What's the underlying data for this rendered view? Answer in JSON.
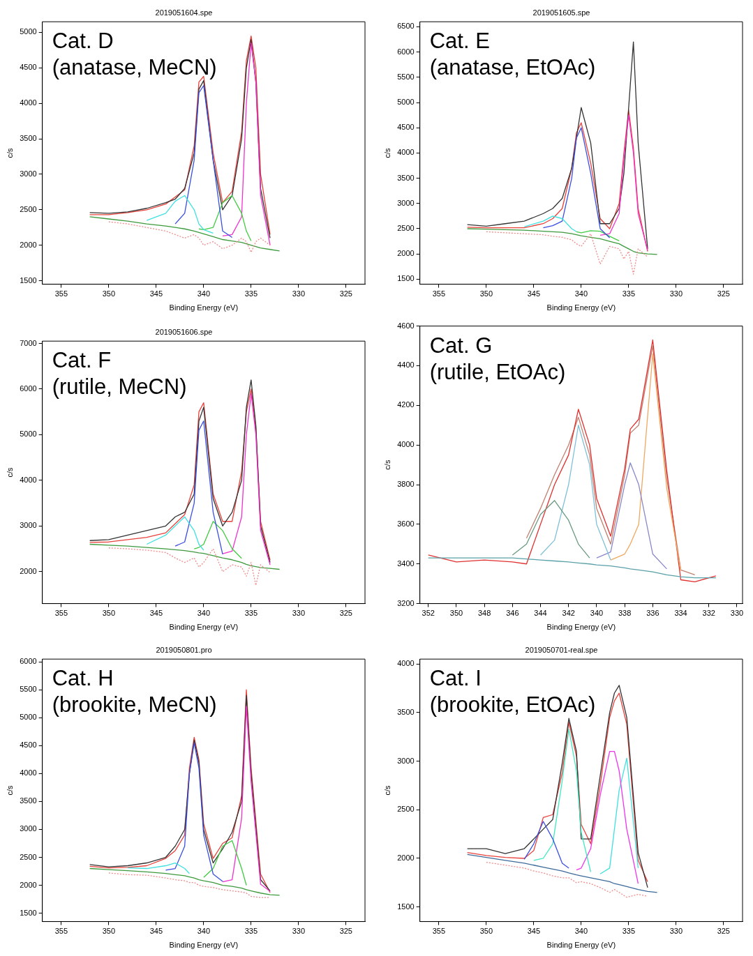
{
  "chart_data": [
    {
      "type": "line",
      "title": "2019051604.spe",
      "xlabel": "Binding Energy (eV)",
      "ylabel": "c/s",
      "annotations": [
        "Cat. D\n(anatase, MeCN)"
      ],
      "xlim": [
        357,
        323
      ],
      "xticks": [
        355,
        350,
        345,
        340,
        335,
        330,
        325
      ],
      "ylim": [
        1450,
        5150
      ],
      "yticks": [
        1500,
        2000,
        2500,
        3000,
        3500,
        4000,
        4500,
        5000
      ],
      "grid": false,
      "legend": false,
      "marker": "none",
      "x": [
        352,
        350,
        348,
        346,
        344,
        343,
        342,
        341,
        340.5,
        340,
        339,
        338,
        337,
        336,
        335.5,
        335,
        334.5,
        334,
        333,
        332
      ],
      "series": [
        {
          "color": "#f08a8a",
          "line_style": "dotted",
          "values": [
            null,
            2330,
            2300,
            2250,
            2200,
            2150,
            2100,
            2150,
            2100,
            2000,
            2050,
            1950,
            2000,
            2100,
            2050,
            1900,
            2050,
            2100,
            2000,
            null
          ]
        },
        {
          "color": "#3c9a3c",
          "values": [
            2400,
            2370,
            2340,
            2300,
            2270,
            2250,
            2230,
            2200,
            2180,
            2160,
            2120,
            2080,
            2060,
            2040,
            2020,
            2000,
            1980,
            1960,
            1940,
            1920
          ]
        },
        {
          "color": "#40e0e0",
          "values": [
            null,
            null,
            null,
            2350,
            2450,
            2620,
            2700,
            2500,
            2300,
            2220,
            2170,
            null,
            null,
            null,
            null,
            null,
            null,
            null,
            null,
            null
          ]
        },
        {
          "color": "#3a4fe0",
          "values": [
            null,
            null,
            null,
            null,
            null,
            2300,
            2450,
            3200,
            4150,
            4250,
            3200,
            2200,
            2110,
            null,
            null,
            null,
            null,
            null,
            null,
            null
          ]
        },
        {
          "color": "#40cc40",
          "values": [
            null,
            null,
            null,
            null,
            null,
            null,
            null,
            null,
            2230,
            2220,
            2250,
            2600,
            2700,
            2450,
            2200,
            2060,
            null,
            null,
            null,
            null
          ]
        },
        {
          "color": "#ee33cc",
          "values": [
            null,
            null,
            null,
            null,
            null,
            null,
            null,
            null,
            null,
            null,
            null,
            2130,
            2150,
            2400,
            4000,
            4850,
            4300,
            2700,
            2000,
            null
          ]
        },
        {
          "color": "#333333",
          "values": [
            2460,
            2450,
            2470,
            2520,
            2600,
            2650,
            2800,
            3300,
            4200,
            4320,
            3200,
            2500,
            2700,
            3500,
            4500,
            4900,
            4300,
            2800,
            2100,
            null
          ]
        },
        {
          "color": "#e8403a",
          "values": [
            2430,
            2430,
            2460,
            2500,
            2580,
            2680,
            2780,
            3400,
            4300,
            4380,
            3300,
            2600,
            2760,
            3600,
            4600,
            4950,
            4500,
            3000,
            2150,
            null
          ]
        }
      ]
    },
    {
      "type": "line",
      "title": "2019051605.spe",
      "xlabel": "Binding Energy (eV)",
      "ylabel": "c/s",
      "annotations": [
        "Cat. E\n(anatase, EtOAc)"
      ],
      "xlim": [
        357,
        323
      ],
      "xticks": [
        355,
        350,
        345,
        340,
        335,
        330,
        325
      ],
      "ylim": [
        1400,
        6600
      ],
      "yticks": [
        1500,
        2000,
        2500,
        3000,
        3500,
        4000,
        4500,
        5000,
        5500,
        6000,
        6500
      ],
      "grid": false,
      "legend": false,
      "marker": "none",
      "x": [
        352,
        350,
        348,
        346,
        344,
        343,
        342,
        341,
        340.5,
        340,
        339,
        338,
        337,
        336,
        335.5,
        335,
        334.5,
        334,
        333,
        332
      ],
      "series": [
        {
          "color": "#f08a8a",
          "line_style": "dotted",
          "values": [
            null,
            2440,
            2420,
            2400,
            2380,
            2350,
            2330,
            2280,
            2200,
            2150,
            2400,
            1800,
            2150,
            2100,
            1900,
            2050,
            1600,
            2100,
            1940,
            null
          ]
        },
        {
          "color": "#3c9a3c",
          "values": [
            2500,
            2490,
            2480,
            2470,
            2450,
            2440,
            2430,
            2400,
            2380,
            2360,
            2330,
            2300,
            2250,
            2200,
            2150,
            2100,
            2050,
            2020,
            2000,
            1990
          ]
        },
        {
          "color": "#40e0e0",
          "values": [
            null,
            null,
            null,
            2540,
            2650,
            2750,
            2700,
            2500,
            2440,
            null,
            null,
            null,
            null,
            null,
            null,
            null,
            null,
            null,
            null,
            null
          ]
        },
        {
          "color": "#3a4fe0",
          "values": [
            null,
            null,
            null,
            null,
            2520,
            2560,
            2650,
            3500,
            4300,
            4500,
            3600,
            2500,
            2320,
            null,
            null,
            null,
            null,
            null,
            null,
            null
          ]
        },
        {
          "color": "#40cc40",
          "values": [
            null,
            null,
            null,
            null,
            null,
            null,
            null,
            null,
            2440,
            2420,
            2460,
            2450,
            2350,
            2260,
            null,
            null,
            null,
            null,
            null,
            null
          ]
        },
        {
          "color": "#ee33cc",
          "values": [
            null,
            null,
            null,
            null,
            null,
            null,
            null,
            null,
            null,
            null,
            null,
            2370,
            2400,
            2800,
            3900,
            4750,
            4000,
            2800,
            2070,
            null
          ]
        },
        {
          "color": "#333333",
          "values": [
            2580,
            2550,
            2600,
            2650,
            2800,
            2900,
            3100,
            3700,
            4300,
            4900,
            4200,
            2600,
            2600,
            2900,
            3600,
            4900,
            6200,
            4200,
            2100,
            null
          ]
        },
        {
          "color": "#e8403a",
          "values": [
            2530,
            2520,
            2520,
            2520,
            2600,
            2700,
            2900,
            3700,
            4400,
            4600,
            3800,
            2700,
            2500,
            3000,
            4000,
            4850,
            4100,
            2900,
            2050,
            null
          ]
        }
      ]
    },
    {
      "type": "line",
      "title": "2019051606.spe",
      "xlabel": "Binding Energy (eV)",
      "ylabel": "c/s",
      "annotations": [
        "Cat. F\n(rutile, MeCN)"
      ],
      "xlim": [
        357,
        323
      ],
      "xticks": [
        355,
        350,
        345,
        340,
        335,
        330,
        325
      ],
      "ylim": [
        1300,
        7050
      ],
      "yticks": [
        2000,
        3000,
        4000,
        5000,
        6000,
        7000
      ],
      "grid": false,
      "legend": false,
      "marker": "none",
      "x": [
        352,
        350,
        348,
        346,
        344,
        343,
        342,
        341,
        340.5,
        340,
        339,
        338,
        337,
        336,
        335.5,
        335,
        334.5,
        334,
        333,
        332
      ],
      "series": [
        {
          "color": "#f08a8a",
          "line_style": "dotted",
          "values": [
            null,
            2520,
            2500,
            2470,
            2420,
            2300,
            2200,
            2300,
            2100,
            2200,
            2500,
            2000,
            2150,
            2100,
            1900,
            2200,
            1700,
            2150,
            1980,
            null
          ]
        },
        {
          "color": "#3c9a3c",
          "values": [
            2600,
            2580,
            2560,
            2530,
            2500,
            2480,
            2460,
            2430,
            2410,
            2400,
            2350,
            2300,
            2260,
            2200,
            2160,
            2130,
            2110,
            2090,
            2070,
            2050
          ]
        },
        {
          "color": "#40e0e0",
          "values": [
            null,
            null,
            null,
            2600,
            2800,
            3000,
            3200,
            2900,
            2600,
            2470,
            null,
            null,
            null,
            null,
            null,
            null,
            null,
            null,
            null,
            null
          ]
        },
        {
          "color": "#3a4fe0",
          "values": [
            null,
            null,
            null,
            null,
            null,
            2560,
            2650,
            3500,
            5100,
            5300,
            3300,
            2380,
            null,
            null,
            null,
            null,
            null,
            null,
            null,
            null
          ]
        },
        {
          "color": "#40cc40",
          "values": [
            null,
            null,
            null,
            null,
            null,
            null,
            null,
            2500,
            2530,
            2600,
            3100,
            2900,
            2500,
            2290,
            null,
            null,
            null,
            null,
            null,
            null
          ]
        },
        {
          "color": "#ee33cc",
          "values": [
            null,
            null,
            null,
            null,
            null,
            null,
            null,
            null,
            null,
            null,
            null,
            2390,
            2450,
            3200,
            5000,
            5900,
            5000,
            2900,
            2150,
            null
          ]
        },
        {
          "color": "#333333",
          "values": [
            2680,
            2700,
            2800,
            2900,
            3000,
            3200,
            3300,
            3700,
            5300,
            5600,
            3600,
            3000,
            3300,
            4000,
            5600,
            6200,
            5200,
            3000,
            2200,
            null
          ]
        },
        {
          "color": "#e8403a",
          "values": [
            2640,
            2650,
            2700,
            2750,
            2850,
            3050,
            3250,
            3900,
            5500,
            5700,
            3700,
            3100,
            3100,
            4200,
            5500,
            6000,
            5150,
            3100,
            2250,
            null
          ]
        }
      ]
    },
    {
      "type": "line",
      "xlabel": "Binding Energy (eV)",
      "ylabel": "c/s",
      "annotations": [
        "Cat. G\n(rutile, EtOAc)"
      ],
      "xlim": [
        352.6,
        329.6
      ],
      "xticks": [
        352,
        350,
        348,
        346,
        344,
        342,
        340,
        338,
        336,
        334,
        332,
        330
      ],
      "ylim": [
        3200,
        4600
      ],
      "yticks": [
        3200,
        3400,
        3600,
        3800,
        4000,
        4200,
        4400,
        4600
      ],
      "grid": false,
      "legend": false,
      "marker": "none",
      "x": [
        352,
        350,
        348,
        346,
        345,
        344,
        343,
        342,
        341.3,
        340.5,
        340,
        339,
        338,
        337.6,
        337,
        336,
        335,
        334,
        333,
        331.5
      ],
      "series": [
        {
          "color": "#5aa0a8",
          "values": [
            3430,
            3430,
            3430,
            3430,
            3425,
            3420,
            3415,
            3410,
            3405,
            3400,
            3395,
            3390,
            3380,
            3375,
            3370,
            3360,
            3345,
            3335,
            3330,
            3330
          ]
        },
        {
          "color": "#6a9a80",
          "values": [
            null,
            null,
            null,
            3445,
            3500,
            3650,
            3720,
            3620,
            3500,
            3430,
            null,
            null,
            null,
            null,
            null,
            null,
            null,
            null,
            null,
            null
          ]
        },
        {
          "color": "#7fc0d8",
          "values": [
            null,
            null,
            null,
            null,
            null,
            3445,
            3520,
            3800,
            4100,
            3900,
            3600,
            3420,
            null,
            null,
            null,
            null,
            null,
            null,
            null,
            null
          ]
        },
        {
          "color": "#8a88c8",
          "values": [
            null,
            null,
            null,
            null,
            null,
            null,
            null,
            null,
            null,
            null,
            3430,
            3460,
            3800,
            3910,
            3800,
            3450,
            3375,
            null,
            null,
            null
          ]
        },
        {
          "color": "#f0a860",
          "values": [
            null,
            null,
            null,
            null,
            null,
            null,
            null,
            null,
            null,
            null,
            null,
            3420,
            3450,
            3500,
            3600,
            4460,
            3780,
            3365,
            null,
            null
          ]
        },
        {
          "color": "#e03030",
          "values": [
            3445,
            3410,
            3420,
            3410,
            3400,
            3600,
            3800,
            3950,
            4180,
            4000,
            3730,
            3540,
            3880,
            4080,
            4130,
            4530,
            3870,
            3320,
            3310,
            3340
          ]
        },
        {
          "color": "#c08070",
          "values": [
            null,
            null,
            null,
            null,
            3530,
            3680,
            3850,
            4000,
            4140,
            3950,
            3680,
            3500,
            3850,
            4060,
            4100,
            4500,
            3830,
            3370,
            3345,
            null
          ]
        }
      ]
    },
    {
      "type": "line",
      "title": "2019050801.pro",
      "xlabel": "Binding Energy (eV)",
      "ylabel": "c/s",
      "annotations": [
        "Cat. H\n(brookite, MeCN)"
      ],
      "xlim": [
        357,
        323
      ],
      "xticks": [
        355,
        350,
        345,
        340,
        335,
        330,
        325
      ],
      "ylim": [
        1350,
        6050
      ],
      "yticks": [
        1500,
        2000,
        2500,
        3000,
        3500,
        4000,
        4500,
        5000,
        5500,
        6000
      ],
      "grid": false,
      "legend": false,
      "marker": "none",
      "x": [
        352,
        350,
        348,
        346,
        344,
        343,
        342,
        341.5,
        341,
        340.5,
        340,
        339,
        338,
        337,
        336,
        335.5,
        335,
        334,
        333,
        332
      ],
      "series": [
        {
          "color": "#f08a8a",
          "line_style": "dotted",
          "values": [
            null,
            2220,
            2190,
            2180,
            2130,
            2100,
            2080,
            2050,
            2050,
            2000,
            1980,
            1960,
            1920,
            1900,
            1880,
            1860,
            1800,
            1780,
            1780,
            null
          ]
        },
        {
          "color": "#3c9a3c",
          "values": [
            2300,
            2280,
            2260,
            2240,
            2210,
            2190,
            2170,
            2150,
            2130,
            2100,
            2080,
            2050,
            2000,
            1980,
            1950,
            1920,
            1900,
            1860,
            1830,
            1820
          ]
        },
        {
          "color": "#40e0e0",
          "values": [
            null,
            null,
            2310,
            2300,
            2350,
            2400,
            2300,
            2210,
            null,
            null,
            null,
            null,
            null,
            null,
            null,
            null,
            null,
            null,
            null,
            null
          ]
        },
        {
          "color": "#3a4fe0",
          "values": [
            null,
            null,
            null,
            null,
            2270,
            2300,
            2700,
            4000,
            4550,
            4100,
            2900,
            2200,
            2070,
            null,
            null,
            null,
            null,
            null,
            null,
            null
          ]
        },
        {
          "color": "#40cc40",
          "values": [
            null,
            null,
            null,
            null,
            null,
            null,
            null,
            null,
            null,
            null,
            2140,
            2300,
            2700,
            2800,
            2300,
            2000,
            null,
            null,
            null,
            null
          ]
        },
        {
          "color": "#ee33cc",
          "values": [
            null,
            null,
            null,
            null,
            null,
            null,
            null,
            null,
            null,
            null,
            null,
            null,
            2060,
            2100,
            3200,
            5200,
            3850,
            2020,
            1890,
            null
          ]
        },
        {
          "color": "#333333",
          "values": [
            2370,
            2330,
            2350,
            2400,
            2500,
            2700,
            3000,
            4000,
            4600,
            4200,
            3000,
            2400,
            2650,
            2950,
            3500,
            5400,
            4000,
            2100,
            1900,
            null
          ]
        },
        {
          "color": "#e8403a",
          "values": [
            2340,
            2310,
            2320,
            2350,
            2480,
            2620,
            2900,
            4100,
            4650,
            4250,
            3100,
            2480,
            2750,
            2850,
            3600,
            5500,
            4100,
            2200,
            1870,
            null
          ]
        }
      ]
    },
    {
      "type": "line",
      "title": "2019050701-real.spe",
      "xlabel": "Binding Energy (eV)",
      "ylabel": "c/s",
      "annotations": [
        "Cat. I\n(brookite, EtOAc)"
      ],
      "xlim": [
        357,
        323
      ],
      "xticks": [
        355,
        350,
        345,
        340,
        335,
        330,
        325
      ],
      "ylim": [
        1350,
        4050
      ],
      "yticks": [
        1500,
        2000,
        2500,
        3000,
        3500,
        4000
      ],
      "grid": false,
      "legend": false,
      "marker": "none",
      "x": [
        352,
        350,
        348,
        346,
        345,
        344,
        343,
        342,
        341.3,
        340.5,
        340,
        339,
        338,
        337,
        336.5,
        336,
        335.2,
        334,
        333,
        332
      ],
      "series": [
        {
          "color": "#f08a8a",
          "line_style": "dotted",
          "values": [
            null,
            1960,
            1930,
            1900,
            1870,
            1850,
            1820,
            1800,
            1800,
            1750,
            1760,
            1740,
            1700,
            1650,
            1680,
            1650,
            1600,
            1630,
            1610,
            null
          ]
        },
        {
          "color": "#3c6a9a",
          "values": [
            2040,
            2010,
            1980,
            1950,
            1930,
            1910,
            1890,
            1870,
            1850,
            1830,
            1820,
            1800,
            1780,
            1760,
            1740,
            1730,
            1710,
            1680,
            1660,
            1650
          ]
        },
        {
          "color": "#3a4fe0",
          "values": [
            null,
            null,
            null,
            1990,
            2150,
            2380,
            2200,
            1950,
            1900,
            null,
            null,
            null,
            null,
            null,
            null,
            null,
            null,
            null,
            null,
            null
          ]
        },
        {
          "color": "#40e8c0",
          "values": [
            null,
            null,
            null,
            null,
            1980,
            2000,
            2150,
            2800,
            3330,
            2900,
            2270,
            1860,
            null,
            null,
            null,
            null,
            null,
            null,
            null,
            null
          ]
        },
        {
          "color": "#ee33ee",
          "values": [
            null,
            null,
            null,
            null,
            null,
            null,
            null,
            null,
            null,
            1880,
            1900,
            2100,
            2650,
            3100,
            3100,
            2900,
            2300,
            1740,
            null,
            null
          ]
        },
        {
          "color": "#40e0e0",
          "values": [
            null,
            null,
            null,
            null,
            null,
            null,
            null,
            null,
            null,
            null,
            null,
            null,
            1840,
            1900,
            2300,
            2700,
            3030,
            1900,
            null,
            null
          ]
        },
        {
          "color": "#333333",
          "values": [
            2100,
            2100,
            2050,
            2100,
            2200,
            2300,
            2400,
            2980,
            3440,
            3100,
            2200,
            2200,
            2850,
            3500,
            3700,
            3780,
            3450,
            2060,
            1700,
            null
          ]
        },
        {
          "color": "#e8403a",
          "values": [
            2060,
            2030,
            2010,
            2000,
            2080,
            2420,
            2450,
            2880,
            3400,
            3050,
            2350,
            2150,
            2750,
            3450,
            3620,
            3700,
            3380,
            1980,
            1760,
            null
          ]
        }
      ]
    }
  ]
}
